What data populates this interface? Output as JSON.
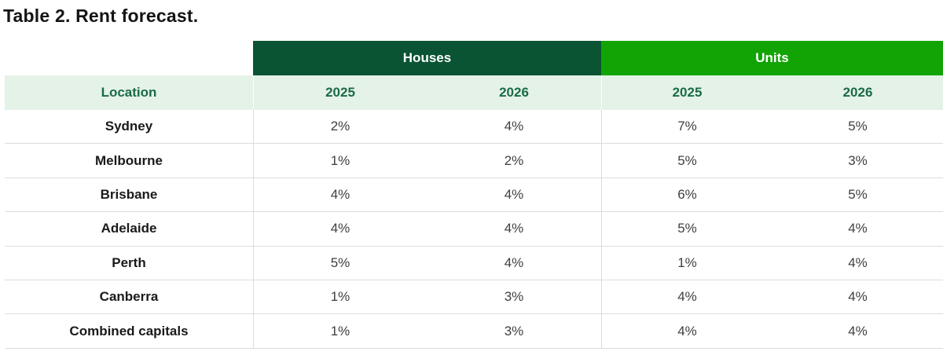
{
  "title": "Table 2. Rent forecast.",
  "table": {
    "groups": [
      "Houses",
      "Units"
    ],
    "headers": {
      "location": "Location",
      "years": [
        "2025",
        "2026",
        "2025",
        "2026"
      ]
    },
    "rows": [
      [
        "Sydney",
        "2%",
        "4%",
        "7%",
        "5%"
      ],
      [
        "Melbourne",
        "1%",
        "2%",
        "5%",
        "3%"
      ],
      [
        "Brisbane",
        "4%",
        "4%",
        "6%",
        "5%"
      ],
      [
        "Adelaide",
        "4%",
        "4%",
        "5%",
        "4%"
      ],
      [
        "Perth",
        "5%",
        "4%",
        "1%",
        "4%"
      ],
      [
        "Canberra",
        "1%",
        "3%",
        "4%",
        "4%"
      ],
      [
        "Combined capitals",
        "1%",
        "3%",
        "4%",
        "4%"
      ]
    ],
    "colors": {
      "houses_header_bg": "#0a5433",
      "units_header_bg": "#12a405",
      "subheader_bg": "#e4f2e7",
      "header_text_green": "#1a6b45",
      "header_text_white": "#ffffff",
      "location_text": "#1a1a1a",
      "value_text": "#3f3f3f",
      "divider": "#dcdcdc"
    }
  },
  "chart_data": {
    "type": "table",
    "title": "Table 2. Rent forecast.",
    "column_groups": [
      "Houses",
      "Units"
    ],
    "columns": [
      "Location",
      "Houses 2025",
      "Houses 2026",
      "Units 2025",
      "Units 2026"
    ],
    "categories": [
      "Sydney",
      "Melbourne",
      "Brisbane",
      "Adelaide",
      "Perth",
      "Canberra",
      "Combined capitals"
    ],
    "series": [
      {
        "name": "Houses 2025",
        "values": [
          2,
          1,
          4,
          4,
          5,
          1,
          1
        ],
        "unit": "%"
      },
      {
        "name": "Houses 2026",
        "values": [
          4,
          2,
          4,
          4,
          4,
          3,
          3
        ],
        "unit": "%"
      },
      {
        "name": "Units 2025",
        "values": [
          7,
          5,
          6,
          5,
          1,
          4,
          4
        ],
        "unit": "%"
      },
      {
        "name": "Units 2026",
        "values": [
          5,
          3,
          5,
          4,
          4,
          4,
          4
        ],
        "unit": "%"
      }
    ]
  }
}
